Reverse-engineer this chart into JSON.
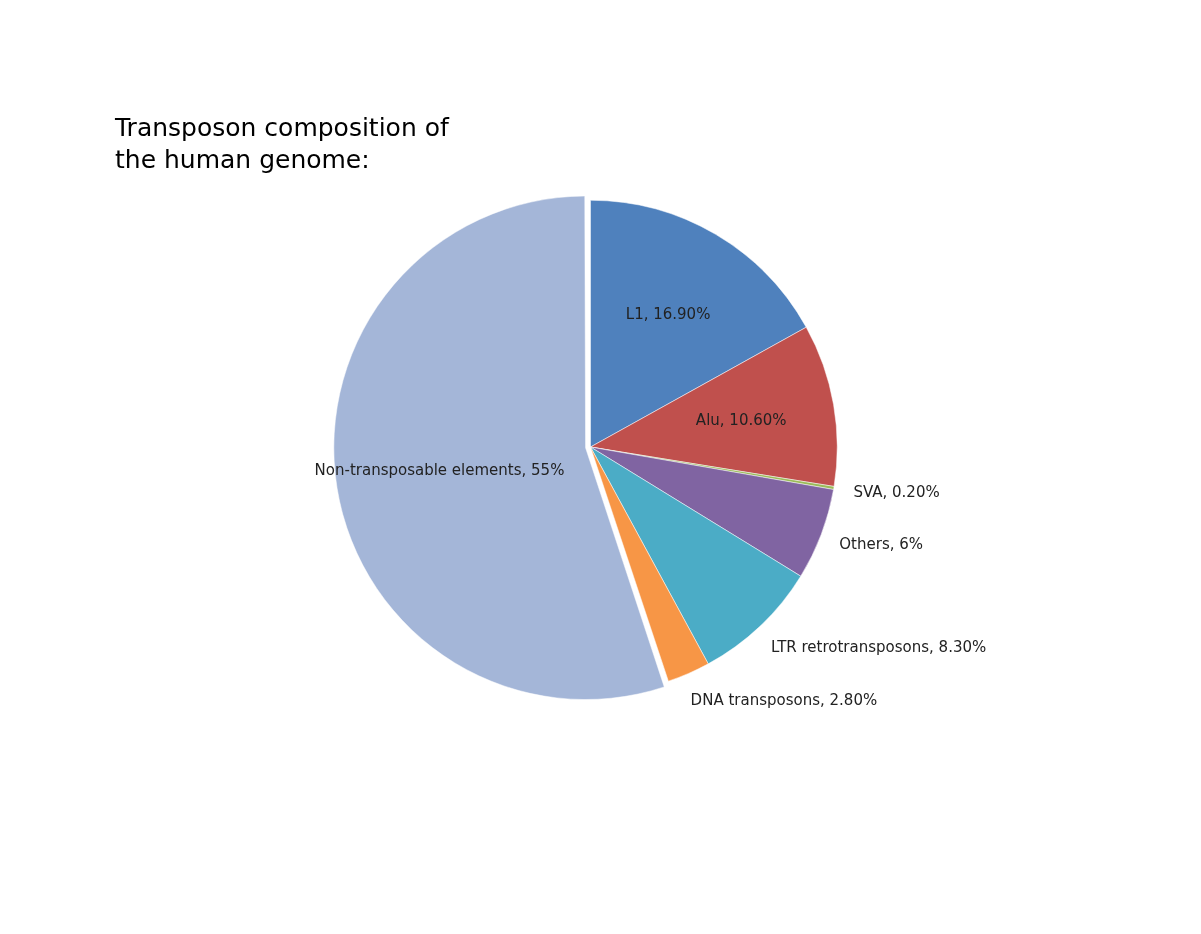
{
  "chart_data": {
    "type": "pie",
    "title": "Transposon composition of the human genome:",
    "categories": [
      "L1",
      "Alu",
      "SVA",
      "Others",
      "LTR retrotransposons",
      "DNA transposons",
      "Non-transposable elements"
    ],
    "values": [
      16.9,
      10.6,
      0.2,
      6,
      8.3,
      2.8,
      55
    ],
    "value_labels": [
      "16.90%",
      "10.60%",
      "0.20%",
      "6%",
      "8.30%",
      "2.80%",
      "55%"
    ],
    "colors": [
      "#4f81bd",
      "#c0504d",
      "#9bbb59",
      "#8064a2",
      "#4bacc6",
      "#f79646",
      "#a4b6d8"
    ],
    "legend": false
  }
}
